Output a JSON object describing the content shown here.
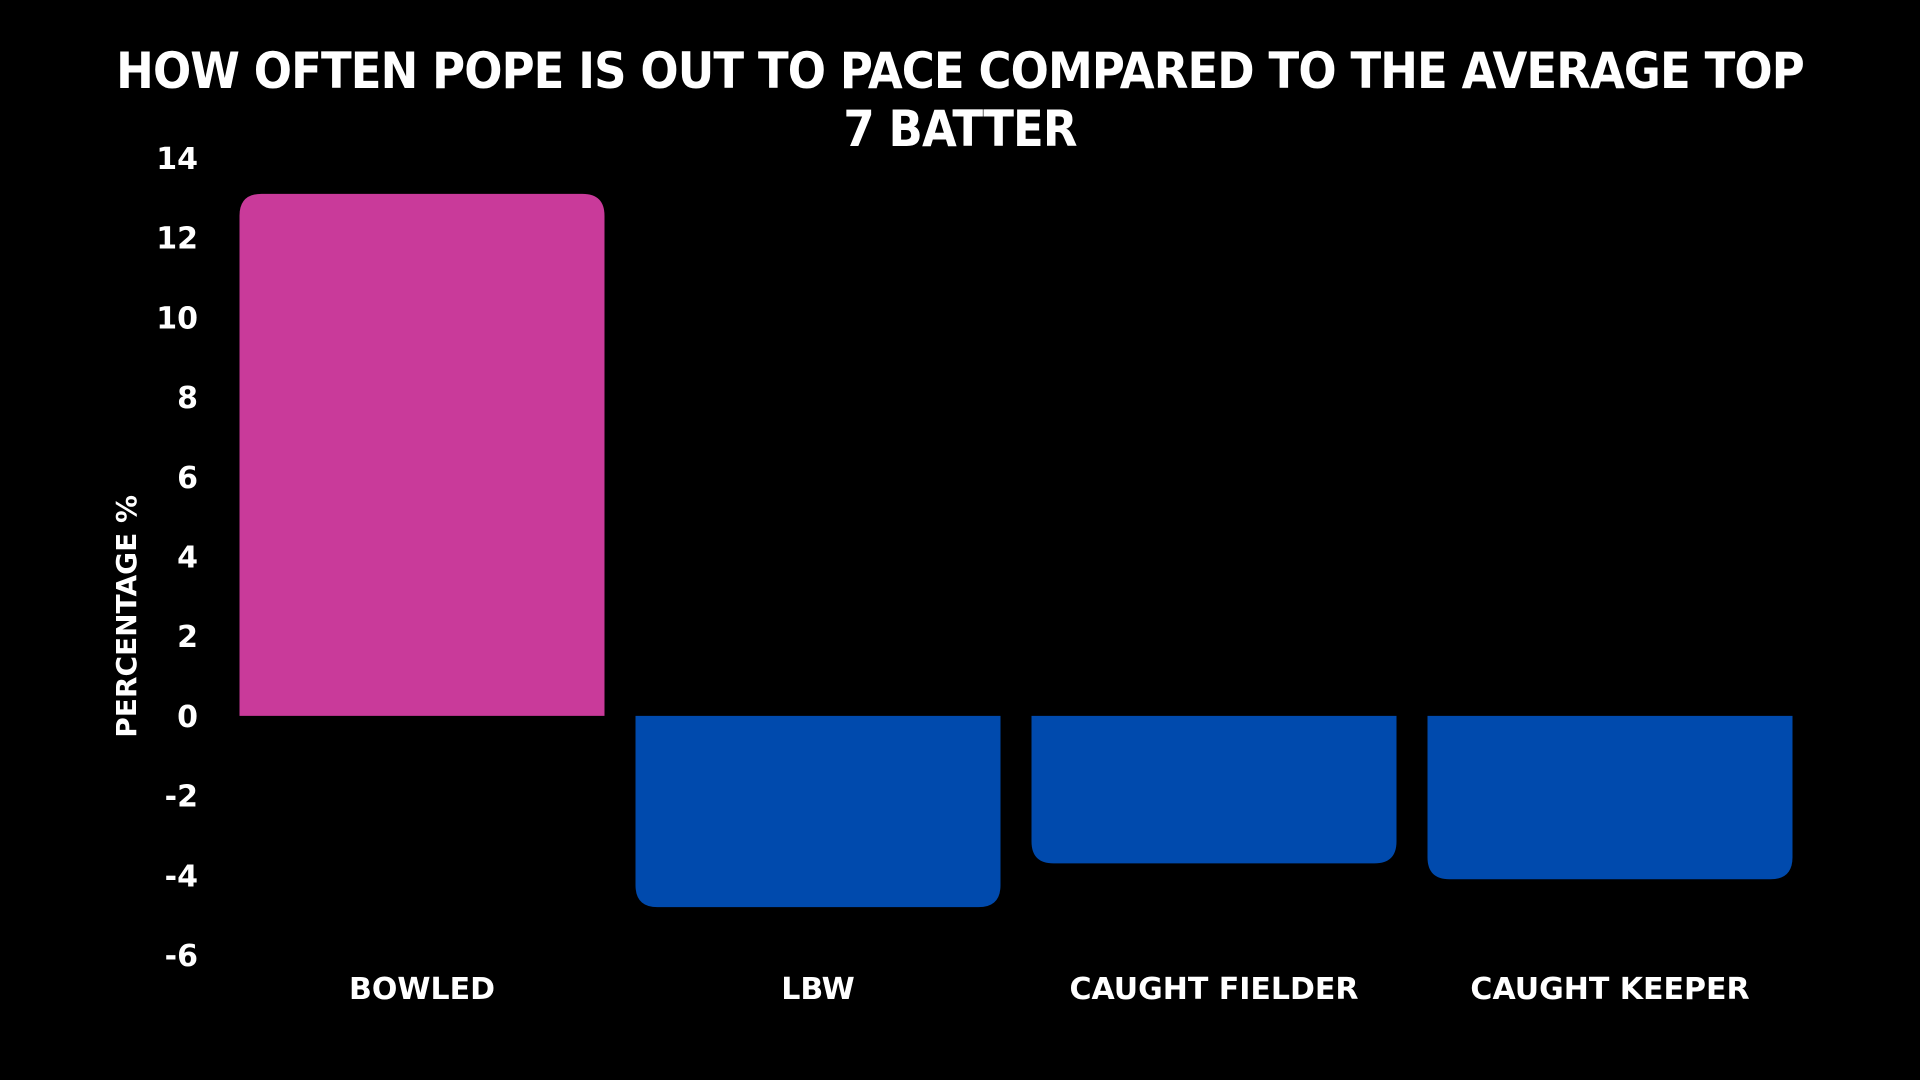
{
  "chart_data": {
    "type": "bar",
    "title": "HOW OFTEN POPE IS OUT TO PACE COMPARED TO THE AVERAGE TOP 7 BATTER",
    "xlabel": "",
    "ylabel": "PERCENTAGE %",
    "categories": [
      "BOWLED",
      "LBW",
      "CAUGHT FIELDER",
      "CAUGHT KEEPER"
    ],
    "values": [
      13.1,
      -4.8,
      -3.7,
      -4.1
    ],
    "colors": [
      "#C93A9A",
      "#004AAD",
      "#004AAD",
      "#004AAD"
    ],
    "ylim": [
      -6,
      14
    ],
    "yticks": [
      14,
      12,
      10,
      8,
      6,
      4,
      2,
      0,
      -2,
      -4,
      -6
    ],
    "grid": false,
    "legend": "none",
    "background": "#000000",
    "text_color": "#FFFFFF"
  }
}
